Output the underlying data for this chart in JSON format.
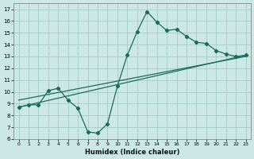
{
  "xlabel": "Humidex (Indice chaleur)",
  "ylabel": "",
  "bg_color": "#cce8e6",
  "grid_color": "#aad0cc",
  "line_color": "#1a6b5a",
  "x_main": [
    0,
    1,
    2,
    3,
    4,
    5,
    6,
    7,
    8,
    9,
    10,
    11,
    12,
    13,
    14,
    15,
    16,
    17,
    18,
    19,
    20,
    21,
    22,
    23
  ],
  "y_main": [
    8.7,
    8.9,
    8.9,
    10.1,
    10.3,
    9.3,
    8.6,
    6.6,
    6.5,
    7.3,
    10.5,
    13.1,
    15.1,
    16.8,
    15.9,
    15.2,
    15.3,
    14.7,
    14.2,
    14.1,
    13.5,
    13.2,
    13.0,
    13.1
  ],
  "reg_line1_x": [
    0,
    23
  ],
  "reg_line1_y": [
    8.7,
    13.1
  ],
  "reg_line2_x": [
    0,
    23
  ],
  "reg_line2_y": [
    9.3,
    13.0
  ],
  "xlim": [
    -0.5,
    23.5
  ],
  "ylim": [
    6,
    17.5
  ],
  "yticks": [
    6,
    7,
    8,
    9,
    10,
    11,
    12,
    13,
    14,
    15,
    16,
    17
  ],
  "xticks": [
    0,
    1,
    2,
    3,
    4,
    5,
    6,
    7,
    8,
    9,
    10,
    11,
    12,
    13,
    14,
    15,
    16,
    17,
    18,
    19,
    20,
    21,
    22,
    23
  ]
}
